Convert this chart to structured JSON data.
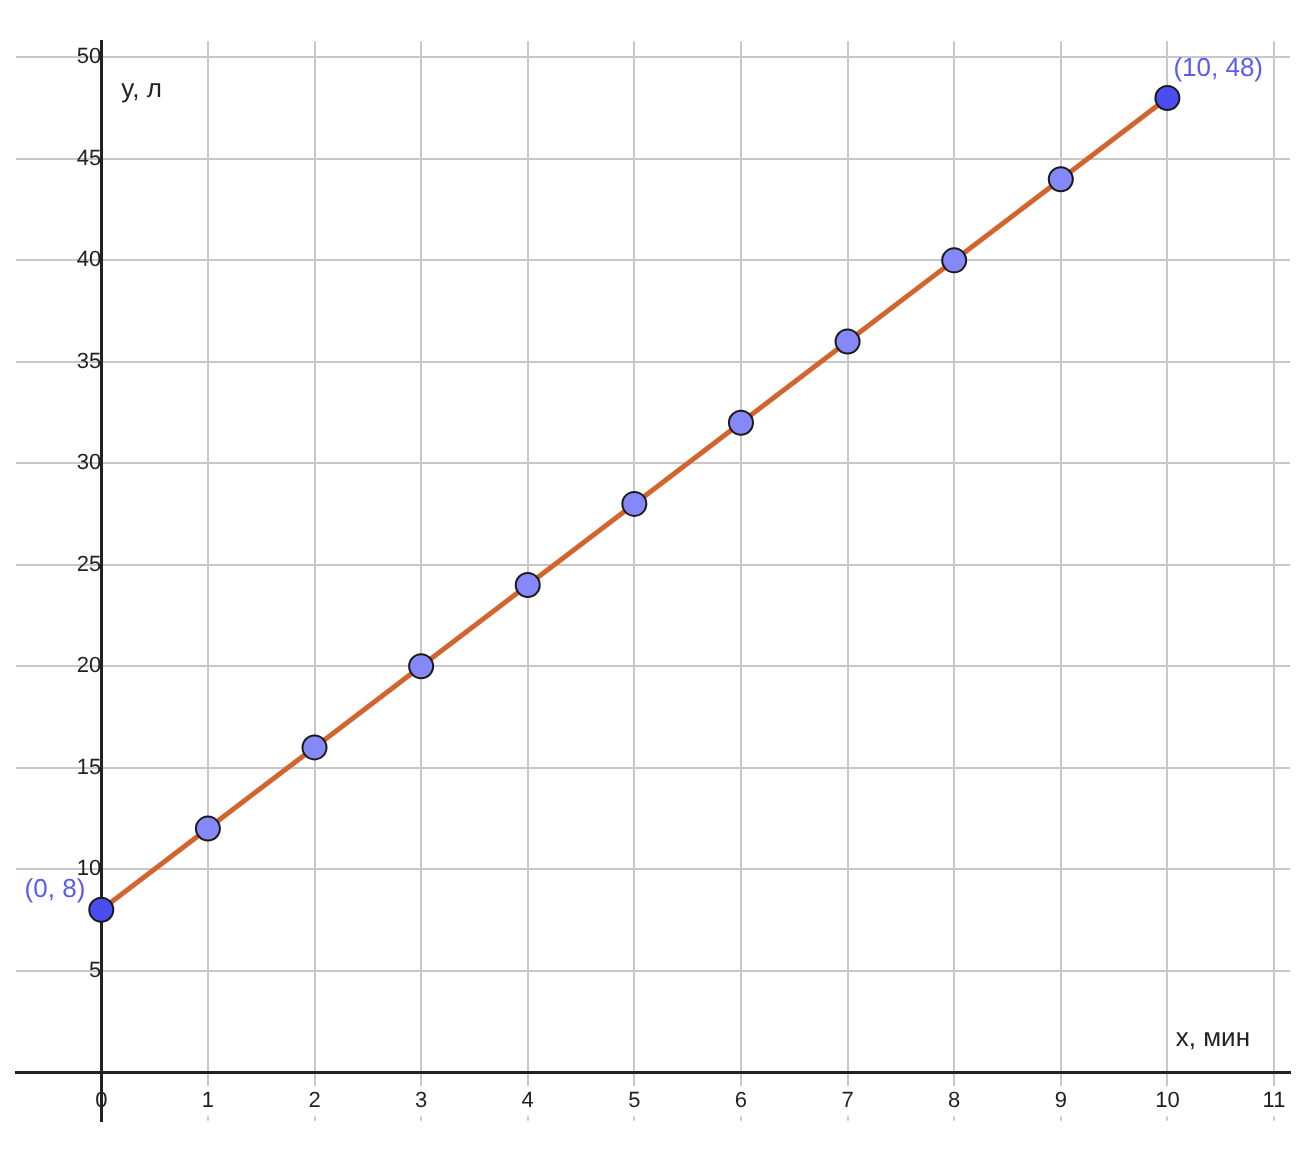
{
  "chart_data": {
    "type": "line",
    "xlabel": "x, мин",
    "ylabel": "y, л",
    "x": [
      0,
      1,
      2,
      3,
      4,
      5,
      6,
      7,
      8,
      9,
      10
    ],
    "series": [
      {
        "color": "#d2642e",
        "colors": [
          "#4a4ef0",
          "#8488f8",
          "#8488f8",
          "#8488f8",
          "#8488f8",
          "#8488f8",
          "#8488f8",
          "#8488f8",
          "#8488f8",
          "#8488f8",
          "#4a4ef0"
        ],
        "values": [
          8,
          12,
          16,
          20,
          24,
          28,
          32,
          36,
          40,
          44,
          48
        ]
      }
    ],
    "xlim": [
      -0.8,
      11.15
    ],
    "ylim": [
      -2.4,
      50.8
    ],
    "xticks": [
      0,
      1,
      2,
      3,
      4,
      5,
      6,
      7,
      8,
      9,
      10,
      11
    ],
    "yticks": [
      5,
      10,
      15,
      20,
      25,
      30,
      35,
      40,
      45,
      50
    ],
    "annotations": [
      {
        "text": "(0, 8)",
        "x": 0,
        "y": 8
      },
      {
        "text": "(10, 48)",
        "x": 10,
        "y": 48
      }
    ],
    "grid": true,
    "marker": "circle",
    "line_style": "solid",
    "legend": false
  }
}
